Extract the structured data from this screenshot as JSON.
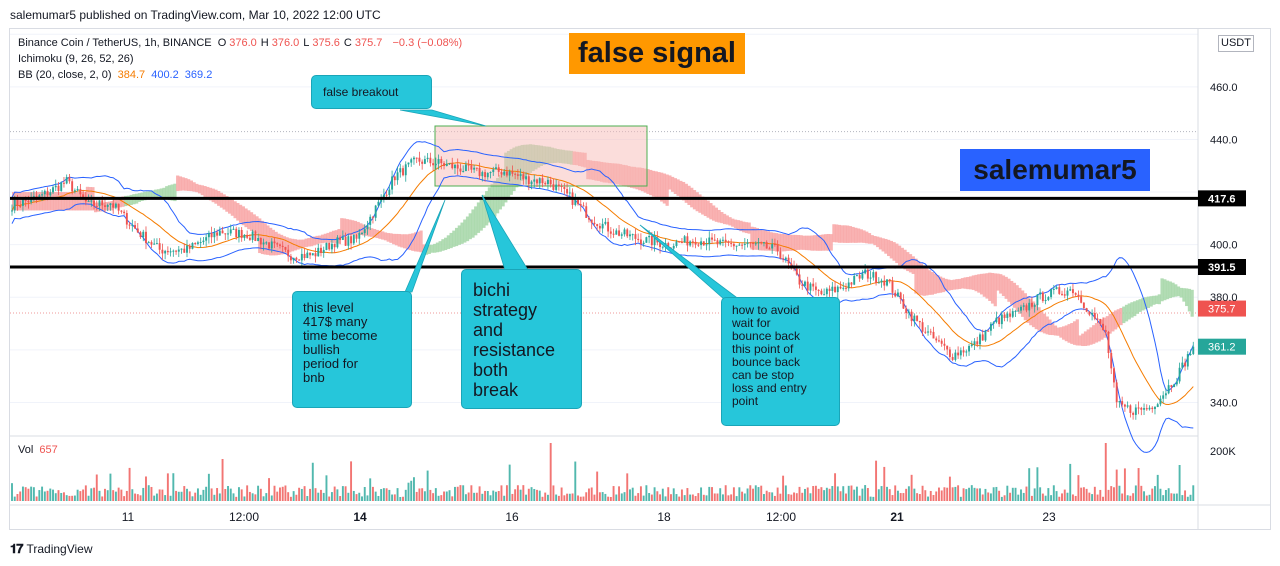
{
  "header": {
    "published": "salemumar5 published on TradingView.com, Mar 10, 2022 12:00 UTC"
  },
  "legend": {
    "symbol": "Binance Coin / TetherUS, 1h, BINANCE",
    "ohlc": [
      {
        "k": "O",
        "v": "376.0"
      },
      {
        "k": "H",
        "v": "376.0"
      },
      {
        "k": "L",
        "v": "375.6"
      },
      {
        "k": "C",
        "v": "375.7"
      }
    ],
    "change": "−0.3 (−0.08%)",
    "ichimoku": "Ichimoku (9, 26, 52, 26)",
    "bb_label": "BB (20, close, 2, 0)",
    "bb_basis": "384.7",
    "bb_upper": "400.2",
    "bb_lower": "369.2"
  },
  "annotations": {
    "false_signal": "false signal",
    "author": "salemumar5",
    "false_breakout": "false breakout",
    "level_note": "this level\n417$ many\ntime become\nbullish\nperiod for\nbnb",
    "bichi_note": "bichi\nstrategy\nand\nresistance\nboth\nbreak",
    "avoid_note": "how to avoid\nwait for\nbounce back\nthis point of\nbounce back\ncan be stop\nloss and entry\npoint"
  },
  "volume": {
    "label": "Vol",
    "value": "657",
    "axis_label": "200K"
  },
  "footer": {
    "brand": "TradingView"
  },
  "colors": {
    "up": "#26a69a",
    "down": "#ef5350",
    "bb_basis": "#f57c00",
    "bb_band": "#2962ff",
    "orange_box": "#ff9800",
    "blue_box": "#2962ff",
    "callout": "#26c6da"
  },
  "chart_data": {
    "type": "candlestick",
    "currency": "USDT",
    "y_ticks": [
      340,
      360,
      380,
      400,
      420,
      440,
      460,
      480
    ],
    "y_tick_labels": [
      "340.0",
      "",
      "380.0",
      "400.0",
      "",
      "440.0",
      "460.0",
      ""
    ],
    "ylim": [
      328,
      482
    ],
    "x_ticks": [
      "11",
      "12:00",
      "14",
      "16",
      "18",
      "12:00",
      "21",
      "23"
    ],
    "x_tick_bold": [
      false,
      false,
      true,
      false,
      false,
      false,
      true,
      false
    ],
    "levels": [
      {
        "value": 417.6,
        "label": "417.6"
      },
      {
        "value": 391.5,
        "label": "391.5"
      }
    ],
    "price_labels": [
      {
        "value": 375.7,
        "label": "375.7",
        "kind": "current"
      },
      {
        "value": 361.2,
        "label": "361.2",
        "kind": "close"
      }
    ],
    "anchors": [
      [
        0,
        415
      ],
      [
        10,
        418
      ],
      [
        20,
        424
      ],
      [
        28,
        415
      ],
      [
        36,
        416
      ],
      [
        46,
        405
      ],
      [
        54,
        398
      ],
      [
        64,
        398
      ],
      [
        76,
        405
      ],
      [
        86,
        404
      ],
      [
        94,
        400
      ],
      [
        102,
        396
      ],
      [
        110,
        396
      ],
      [
        118,
        401
      ],
      [
        126,
        402
      ],
      [
        132,
        412
      ],
      [
        140,
        426
      ],
      [
        148,
        432
      ],
      [
        156,
        431
      ],
      [
        164,
        429
      ],
      [
        172,
        427
      ],
      [
        180,
        428
      ],
      [
        188,
        425
      ],
      [
        196,
        424
      ],
      [
        204,
        418
      ],
      [
        212,
        410
      ],
      [
        220,
        405
      ],
      [
        230,
        402
      ],
      [
        240,
        400
      ],
      [
        250,
        402
      ],
      [
        260,
        400
      ],
      [
        270,
        400
      ],
      [
        280,
        398
      ],
      [
        288,
        386
      ],
      [
        296,
        381
      ],
      [
        304,
        384
      ],
      [
        312,
        389
      ],
      [
        320,
        386
      ],
      [
        328,
        374
      ],
      [
        336,
        365
      ],
      [
        344,
        358
      ],
      [
        352,
        362
      ],
      [
        360,
        371
      ],
      [
        368,
        374
      ],
      [
        376,
        380
      ],
      [
        382,
        382
      ],
      [
        388,
        383
      ],
      [
        394,
        375
      ],
      [
        400,
        366
      ],
      [
        404,
        339
      ],
      [
        410,
        337
      ],
      [
        416,
        338
      ],
      [
        420,
        342
      ],
      [
        426,
        350
      ],
      [
        432,
        361
      ]
    ],
    "n_candles": 433
  }
}
